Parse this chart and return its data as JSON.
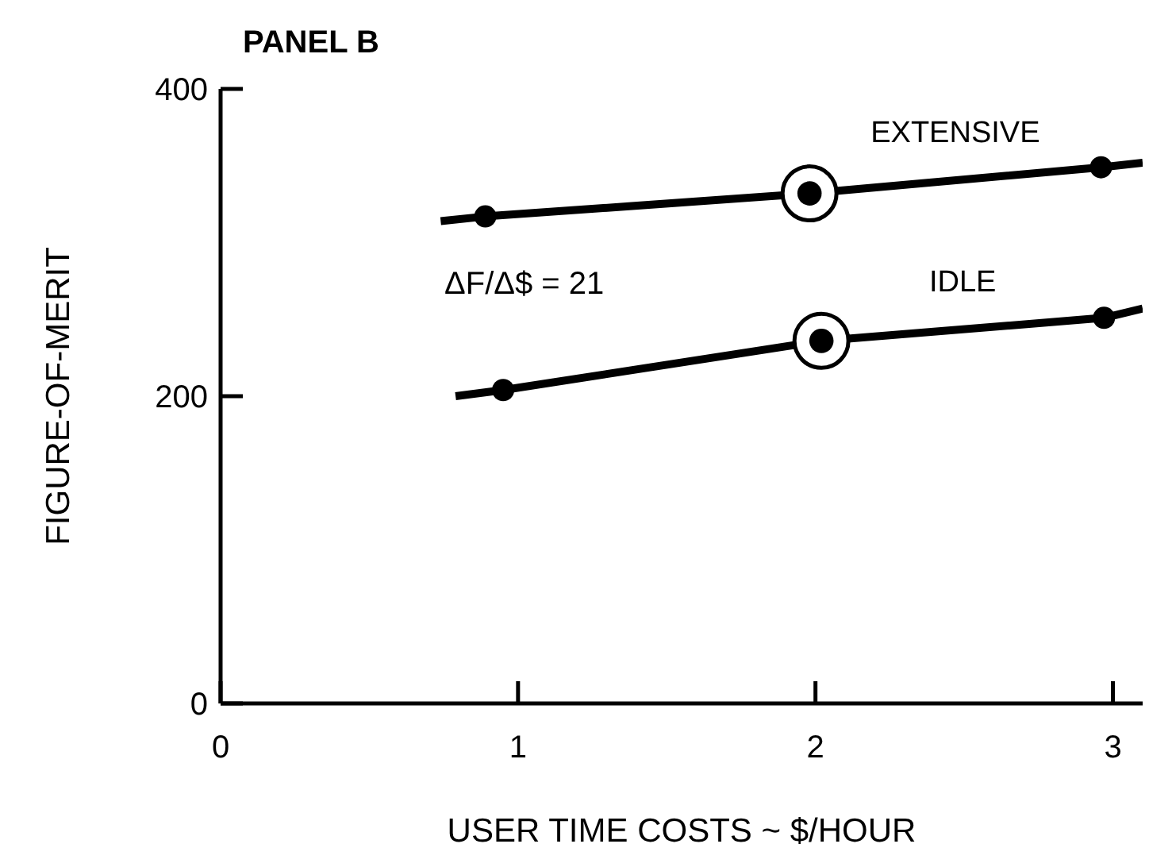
{
  "chart_data": {
    "type": "line",
    "title": "PANEL B",
    "xlabel": "USER TIME COSTS ~ $/HOUR",
    "ylabel": "FIGURE-OF-MERIT",
    "annotations": [
      "ΔF/Δ$ = 21"
    ],
    "xlim": [
      0,
      3.1
    ],
    "xticks": [
      0,
      1,
      2,
      3
    ],
    "ylim": [
      0,
      400
    ],
    "yticks": [
      0,
      200,
      400
    ],
    "grid": false,
    "legend": false,
    "series": [
      {
        "name": "EXTENSIVE",
        "color": "#000000",
        "marker": "none",
        "x": [
          0.74,
          0.89,
          1.98,
          2.96,
          3.1
        ],
        "values": [
          314,
          317,
          332,
          349,
          352
        ]
      },
      {
        "type": "scatter",
        "color": "#000000",
        "marker": "circle",
        "x": [
          0.89,
          2.96
        ],
        "values": [
          317,
          349
        ]
      },
      {
        "name": "IDLE",
        "color": "#000000",
        "marker": "none",
        "x": [
          0.79,
          0.95,
          2.02,
          2.97,
          3.1
        ],
        "values": [
          200,
          204,
          236,
          251,
          257
        ]
      },
      {
        "type": "scatter",
        "color": "#000000",
        "marker": "circle",
        "x": [
          0.95,
          2.97
        ],
        "values": [
          204,
          251
        ]
      },
      {
        "type": "bubble",
        "color": "#000000",
        "x": [
          1.98,
          2.02
        ],
        "values": [
          332,
          236
        ],
        "sizes": [
          1,
          1
        ]
      }
    ]
  }
}
